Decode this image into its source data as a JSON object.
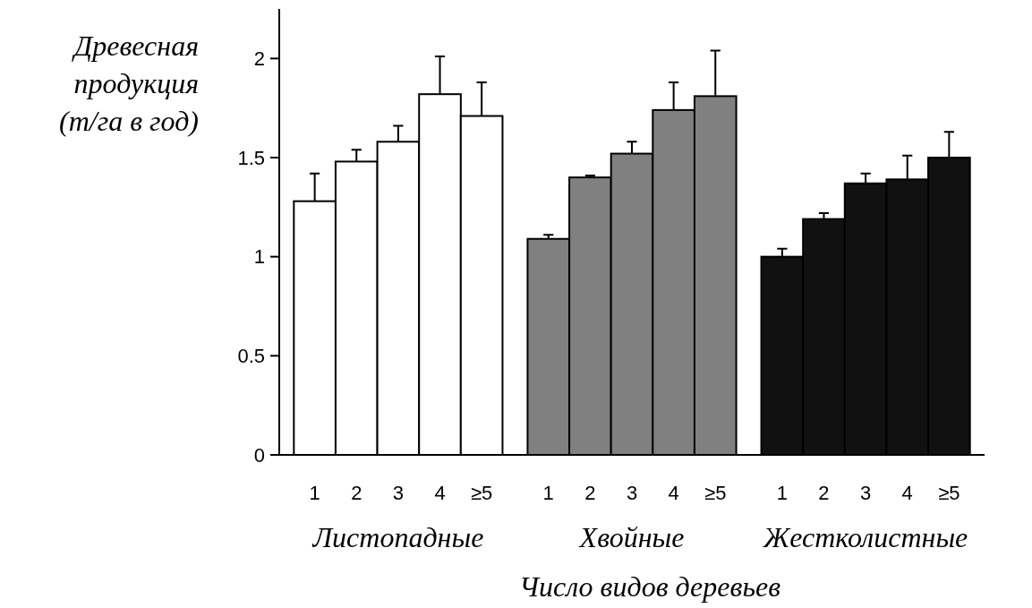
{
  "chart_data": {
    "type": "bar",
    "ylabel": "Древесная\nпродукция\n(т/га в год)",
    "xlabel": "Число видов деревьев",
    "categories": [
      "1",
      "2",
      "3",
      "4",
      "≥5",
      "1",
      "2",
      "3",
      "4",
      "≥5",
      "1",
      "2",
      "3",
      "4",
      "≥5"
    ],
    "series": [
      {
        "color": "#ffffff",
        "values": [
          1.28,
          1.48,
          1.58,
          1.82,
          1.71,
          null,
          null,
          null,
          null,
          null,
          null,
          null,
          null,
          null,
          null
        ],
        "errors": [
          [
            1.28,
            1.42
          ],
          [
            1.48,
            1.54
          ],
          [
            1.58,
            1.66
          ],
          [
            1.82,
            2.01
          ],
          [
            1.71,
            1.88
          ],
          null,
          null,
          null,
          null,
          null,
          null,
          null,
          null,
          null,
          null
        ]
      },
      {
        "color": "#808080",
        "values": [
          null,
          null,
          null,
          null,
          null,
          1.09,
          1.4,
          1.52,
          1.74,
          1.81,
          null,
          null,
          null,
          null,
          null
        ],
        "errors": [
          null,
          null,
          null,
          null,
          null,
          [
            1.09,
            1.11
          ],
          [
            1.4,
            1.41
          ],
          [
            1.52,
            1.58
          ],
          [
            1.74,
            1.88
          ],
          [
            1.81,
            2.04
          ],
          null,
          null,
          null,
          null,
          null
        ]
      },
      {
        "color": "#111111",
        "values": [
          null,
          null,
          null,
          null,
          null,
          null,
          null,
          null,
          null,
          null,
          1.0,
          1.19,
          1.37,
          1.39,
          1.5
        ],
        "errors": [
          null,
          null,
          null,
          null,
          null,
          null,
          null,
          null,
          null,
          null,
          [
            1.0,
            1.04
          ],
          [
            1.19,
            1.22
          ],
          [
            1.37,
            1.42
          ],
          [
            1.39,
            1.51
          ],
          [
            1.5,
            1.63
          ]
        ]
      }
    ],
    "annotations": [
      "Листопадные",
      "Хвойные",
      "Жестколистные"
    ],
    "ylim": [
      0,
      2.25
    ],
    "yticks": [
      0,
      0.5,
      1,
      1.5,
      2
    ],
    "grid": false
  }
}
